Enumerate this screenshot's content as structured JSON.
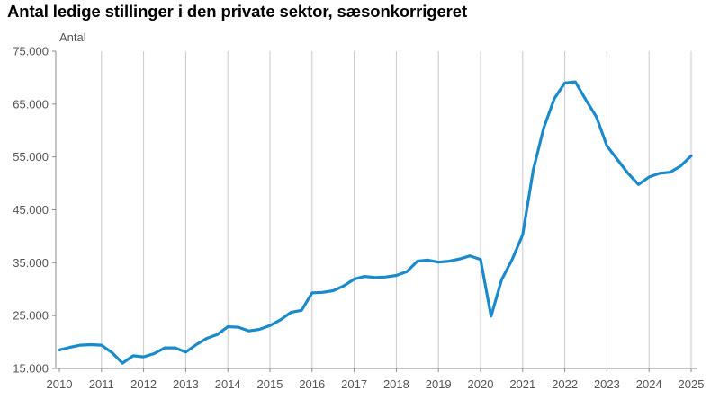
{
  "chart_data": {
    "type": "line",
    "title": "Antal ledige stillinger i den private sektor, sæsonkorrigeret",
    "ylabel": "Antal",
    "xlabel": "",
    "xlim": [
      2010,
      2025.2
    ],
    "ylim": [
      15000,
      75000
    ],
    "yticks": [
      15000,
      25000,
      35000,
      45000,
      55000,
      65000,
      75000
    ],
    "ytick_labels": [
      "15.000",
      "25.000",
      "35.000",
      "45.000",
      "55.000",
      "65.000",
      "75.000"
    ],
    "xticks": [
      2010,
      2011,
      2012,
      2013,
      2014,
      2015,
      2016,
      2017,
      2018,
      2019,
      2020,
      2021,
      2022,
      2023,
      2024,
      2025
    ],
    "xtick_labels": [
      "2010",
      "2011",
      "2012",
      "2013",
      "2014",
      "2015",
      "2016",
      "2017",
      "2018",
      "2019",
      "2020",
      "2021",
      "2022",
      "2023",
      "2024",
      "2025"
    ],
    "grid": "vertical",
    "line_color": "#1b8acb",
    "series": [
      {
        "x": [
          2010.0,
          2010.25,
          2010.5,
          2010.75,
          2011.0,
          2011.25,
          2011.5,
          2011.75,
          2012.0,
          2012.25,
          2012.5,
          2012.75,
          2013.0,
          2013.25,
          2013.5,
          2013.75,
          2014.0,
          2014.25,
          2014.5,
          2014.75,
          2015.0,
          2015.25,
          2015.5,
          2015.75,
          2016.0,
          2016.25,
          2016.5,
          2016.75,
          2017.0,
          2017.25,
          2017.5,
          2017.75,
          2018.0,
          2018.25,
          2018.5,
          2018.75,
          2019.0,
          2019.25,
          2019.5,
          2019.75,
          2020.0,
          2020.25,
          2020.5,
          2020.75,
          2021.0,
          2021.25,
          2021.5,
          2021.75,
          2022.0,
          2022.25,
          2022.5,
          2022.75,
          2023.0,
          2023.25,
          2023.5,
          2023.75,
          2024.0,
          2024.25,
          2024.5,
          2024.75,
          2025.0
        ],
        "values": [
          18500,
          19000,
          19400,
          19500,
          19400,
          18000,
          16000,
          17400,
          17200,
          17800,
          18900,
          18900,
          18100,
          19500,
          20700,
          21400,
          22900,
          22800,
          22100,
          22400,
          23100,
          24200,
          25600,
          26000,
          29300,
          29400,
          29700,
          30600,
          31900,
          32400,
          32200,
          32300,
          32600,
          33300,
          35300,
          35500,
          35100,
          35300,
          35700,
          36300,
          35600,
          24900,
          31800,
          35600,
          40300,
          52500,
          60500,
          66000,
          69000,
          69200,
          65800,
          62600,
          57100,
          54500,
          51900,
          49800,
          51200,
          51900,
          52100,
          53300,
          55200
        ]
      }
    ]
  }
}
